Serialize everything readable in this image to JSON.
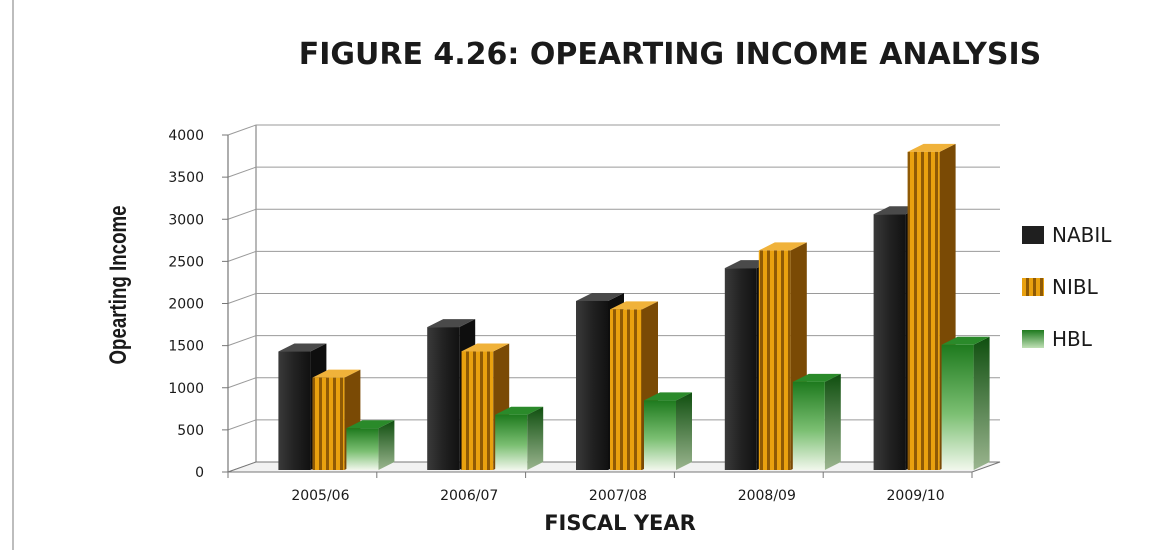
{
  "chart_data": {
    "type": "bar",
    "title": "FIGURE 4.26: OPEARTING INCOME ANALYSIS",
    "xlabel": "FISCAL YEAR",
    "ylabel": "Opearting Income",
    "categories": [
      "2005/06",
      "2006/07",
      "2007/08",
      "2008/09",
      "2009/10"
    ],
    "ylim": [
      0,
      4000
    ],
    "yticks": [
      0,
      500,
      1000,
      1500,
      2000,
      2500,
      3000,
      3500,
      4000
    ],
    "grid": true,
    "legend_position": "right",
    "series": [
      {
        "name": "NABIL",
        "values": [
          1430,
          1720,
          2030,
          2420,
          3060
        ],
        "color": "#2a2a2a"
      },
      {
        "name": "NIBL",
        "values": [
          1120,
          1430,
          1930,
          2630,
          3800
        ],
        "color": "#d98e0b"
      },
      {
        "name": "HBL",
        "values": [
          520,
          680,
          850,
          1070,
          1510
        ],
        "color": "#2f8a2f"
      }
    ]
  }
}
